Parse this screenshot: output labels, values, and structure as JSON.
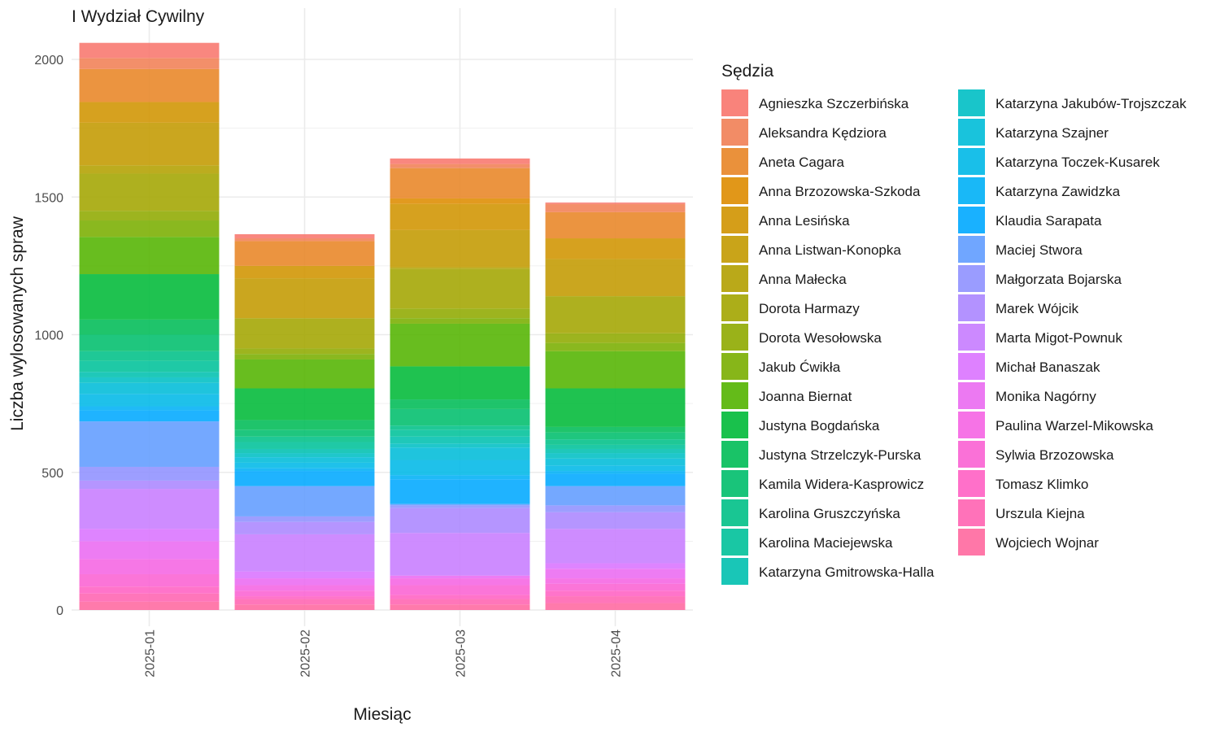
{
  "chart_data": {
    "type": "bar",
    "stacked": true,
    "title": "I Wydział Cywilny",
    "xlabel": "Miesiąc",
    "ylabel": "Liczba wylosowanych spraw",
    "categories": [
      "2025-01",
      "2025-02",
      "2025-03",
      "2025-04"
    ],
    "ylim": [
      0,
      2100
    ],
    "yticks": [
      0,
      500,
      1000,
      1500,
      2000
    ],
    "grid": true,
    "legend": {
      "title": "Sędzia",
      "placement": "right",
      "columns": 2
    },
    "series": [
      {
        "name": "Agnieszka Szczerbińska",
        "color": "#F8766D",
        "values": [
          55,
          15,
          20,
          5
        ]
      },
      {
        "name": "Aleksandra Kędziora",
        "color": "#F17F55",
        "values": [
          40,
          10,
          15,
          30
        ]
      },
      {
        "name": "Aneta Cagara",
        "color": "#E88526",
        "values": [
          120,
          90,
          110,
          95
        ]
      },
      {
        "name": "Anna Brzozowska-Szkoda",
        "color": "#DE8C00",
        "values": [
          0,
          0,
          20,
          0
        ]
      },
      {
        "name": "Anna Lesińska",
        "color": "#D09400",
        "values": [
          75,
          45,
          95,
          75
        ]
      },
      {
        "name": "Anna Listwan-Konopka",
        "color": "#C39A00",
        "values": [
          155,
          145,
          135,
          135
        ]
      },
      {
        "name": "Anna Małecka",
        "color": "#B3A000",
        "values": [
          30,
          0,
          5,
          0
        ]
      },
      {
        "name": "Dorota Harmazy",
        "color": "#A3A500",
        "values": [
          135,
          110,
          145,
          135
        ]
      },
      {
        "name": "Dorota Wesołowska",
        "color": "#8FAA00",
        "values": [
          35,
          20,
          35,
          35
        ]
      },
      {
        "name": "Jakub Ćwikła",
        "color": "#7AAE00",
        "values": [
          60,
          20,
          20,
          30
        ]
      },
      {
        "name": "Joanna Biernat",
        "color": "#53B400",
        "values": [
          135,
          105,
          155,
          135
        ]
      },
      {
        "name": "Justyna Bogdańska",
        "color": "#00BA38",
        "values": [
          165,
          115,
          120,
          140
        ]
      },
      {
        "name": "Justyna Strzelczyk-Purska",
        "color": "#00BC56",
        "values": [
          55,
          35,
          35,
          20
        ]
      },
      {
        "name": "Kamila Widera-Kasprowicz",
        "color": "#00BE6C",
        "values": [
          60,
          25,
          60,
          25
        ]
      },
      {
        "name": "Karolina Gruszczyńska",
        "color": "#00C087",
        "values": [
          35,
          20,
          15,
          20
        ]
      },
      {
        "name": "Karolina Maciejewska",
        "color": "#00C19A",
        "values": [
          40,
          25,
          25,
          15
        ]
      },
      {
        "name": "Katarzyna Gmitrowska-Halla",
        "color": "#00C0AF",
        "values": [
          20,
          15,
          25,
          15
        ]
      },
      {
        "name": "Katarzyna Jakubów-Trojszczak",
        "color": "#00BFC4",
        "values": [
          20,
          15,
          15,
          20
        ]
      },
      {
        "name": "Katarzyna Szajner",
        "color": "#00BCD8",
        "values": [
          40,
          20,
          45,
          25
        ]
      },
      {
        "name": "Katarzyna Toczek-Kusarek",
        "color": "#00B8E7",
        "values": [
          45,
          20,
          55,
          20
        ]
      },
      {
        "name": "Katarzyna Zawidzka",
        "color": "#00B0F6",
        "values": [
          15,
          10,
          15,
          10
        ]
      },
      {
        "name": "Klaudia Sarapata",
        "color": "#00A9FF",
        "values": [
          40,
          55,
          90,
          45
        ]
      },
      {
        "name": "Maciej Stwora",
        "color": "#619CFF",
        "values": [
          165,
          110,
          5,
          70
        ]
      },
      {
        "name": "Małgorzata Bojarska",
        "color": "#8F91FF",
        "values": [
          50,
          20,
          10,
          25
        ]
      },
      {
        "name": "Marek Wójcik",
        "color": "#AB86FF",
        "values": [
          30,
          45,
          90,
          60
        ]
      },
      {
        "name": "Marta Migot-Pownuk",
        "color": "#C77CFF",
        "values": [
          145,
          135,
          155,
          125
        ]
      },
      {
        "name": "Michał Banaszak",
        "color": "#DA73FF",
        "values": [
          45,
          25,
          0,
          20
        ]
      },
      {
        "name": "Monika Nagórny",
        "color": "#EA6AF1",
        "values": [
          65,
          25,
          10,
          35
        ]
      },
      {
        "name": "Paulina Warzel-Mikowska",
        "color": "#F564E3",
        "values": [
          55,
          20,
          25,
          20
        ]
      },
      {
        "name": "Sylwia Brzozowska",
        "color": "#FA62D3",
        "values": [
          45,
          20,
          35,
          25
        ]
      },
      {
        "name": "Tomasz Klimko",
        "color": "#FF61C3",
        "values": [
          25,
          10,
          15,
          20
        ]
      },
      {
        "name": "Urszula Kiejna",
        "color": "#FF63B1",
        "values": [
          30,
          20,
          20,
          25
        ]
      },
      {
        "name": "Wojciech Wojnar",
        "color": "#FF689F",
        "values": [
          30,
          20,
          20,
          25
        ]
      }
    ]
  }
}
